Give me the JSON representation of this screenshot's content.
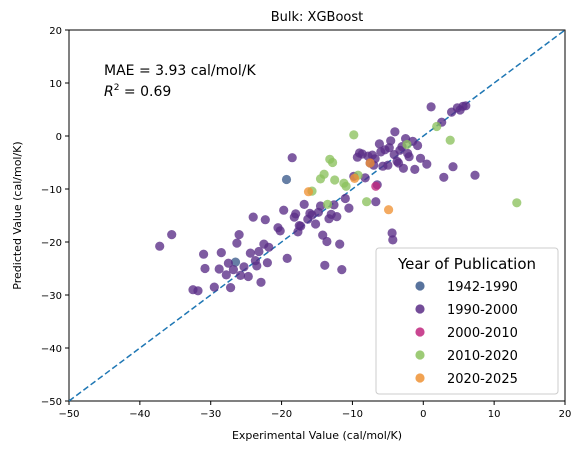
{
  "chart_data": {
    "type": "scatter",
    "title": "Bulk: XGBoost",
    "xlabel": "Experimental Value (cal/mol/K)",
    "ylabel": "Predicted Value (cal/mol/K)",
    "xlim": [
      -50,
      20
    ],
    "ylim": [
      -50,
      20
    ],
    "xticks": [
      -50,
      -40,
      -30,
      -20,
      -10,
      0,
      10,
      20
    ],
    "yticks": [
      -50,
      -40,
      -30,
      -20,
      -10,
      0,
      10,
      20
    ],
    "xtick_labels": [
      "−50",
      "−40",
      "−30",
      "−20",
      "−10",
      "0",
      "10",
      "20"
    ],
    "ytick_labels": [
      "−50",
      "−40",
      "−30",
      "−20",
      "−10",
      "0",
      "10",
      "20"
    ],
    "reference_line": "y = x",
    "annotations": {
      "mae": "MAE = 3.93 cal/mol/K",
      "r2_prefix": "R",
      "r2_sup": "2",
      "r2_value": " = 0.69"
    },
    "legend": {
      "title": "Year of Publication",
      "position": "lower-right"
    },
    "series": [
      {
        "name": "1942-1990",
        "color": "#3b5b8c",
        "points": [
          [
            -19.3,
            -8.2
          ],
          [
            -26.5,
            -23.8
          ]
        ]
      },
      {
        "name": "1990-2000",
        "color": "#5a2d86",
        "points": [
          [
            -37.2,
            -20.8
          ],
          [
            -35.5,
            -18.6
          ],
          [
            -32.5,
            -29.0
          ],
          [
            -31.8,
            -29.2
          ],
          [
            -30.8,
            -25.0
          ],
          [
            -31.0,
            -22.3
          ],
          [
            -29.5,
            -28.5
          ],
          [
            -28.8,
            -25.1
          ],
          [
            -28.5,
            -22.0
          ],
          [
            -27.8,
            -26.2
          ],
          [
            -27.5,
            -24.0
          ],
          [
            -27.2,
            -28.6
          ],
          [
            -26.8,
            -25.2
          ],
          [
            -26.3,
            -20.2
          ],
          [
            -26.0,
            -18.6
          ],
          [
            -25.8,
            -26.3
          ],
          [
            -25.3,
            -24.7
          ],
          [
            -24.7,
            -26.5
          ],
          [
            -24.4,
            -22.1
          ],
          [
            -24.0,
            -15.3
          ],
          [
            -23.7,
            -23.5
          ],
          [
            -23.5,
            -24.5
          ],
          [
            -23.2,
            -21.8
          ],
          [
            -22.9,
            -27.6
          ],
          [
            -22.5,
            -20.4
          ],
          [
            -22.0,
            -23.9
          ],
          [
            -22.3,
            -15.8
          ],
          [
            -21.8,
            -21.0
          ],
          [
            -20.5,
            -17.3
          ],
          [
            -20.2,
            -17.9
          ],
          [
            -19.7,
            -14.0
          ],
          [
            -19.2,
            -23.1
          ],
          [
            -18.5,
            -4.1
          ],
          [
            -18.2,
            -15.3
          ],
          [
            -18.0,
            -14.7
          ],
          [
            -17.7,
            -18.1
          ],
          [
            -17.5,
            -16.9
          ],
          [
            -16.8,
            -12.9
          ],
          [
            -16.3,
            -15.7
          ],
          [
            -16.0,
            -14.6
          ],
          [
            -15.7,
            -14.9
          ],
          [
            -15.2,
            -16.6
          ],
          [
            -14.8,
            -14.4
          ],
          [
            -14.5,
            -13.2
          ],
          [
            -14.2,
            -18.7
          ],
          [
            -13.9,
            -24.4
          ],
          [
            -13.6,
            -19.9
          ],
          [
            -13.3,
            -15.6
          ],
          [
            -13.0,
            -14.8
          ],
          [
            -12.6,
            -13.0
          ],
          [
            -12.2,
            -15.2
          ],
          [
            -11.8,
            -20.4
          ],
          [
            -11.5,
            -25.2
          ],
          [
            -11.0,
            -11.8
          ],
          [
            -10.5,
            -13.6
          ],
          [
            -9.8,
            -7.6
          ],
          [
            -9.3,
            -4.0
          ],
          [
            -8.6,
            -3.4
          ],
          [
            -8.2,
            -7.9
          ],
          [
            -7.8,
            -3.8
          ],
          [
            -7.5,
            -5.1
          ],
          [
            -7.2,
            -3.6
          ],
          [
            -7.0,
            -5.5
          ],
          [
            -6.8,
            -4.3
          ],
          [
            -6.5,
            -9.2
          ],
          [
            -6.2,
            -1.5
          ],
          [
            -6.0,
            -3.0
          ],
          [
            -5.7,
            -5.7
          ],
          [
            -5.4,
            -2.6
          ],
          [
            -5.0,
            -5.5
          ],
          [
            -4.8,
            -2.2
          ],
          [
            -4.6,
            -0.9
          ],
          [
            -4.4,
            -18.3
          ],
          [
            -4.3,
            -19.6
          ],
          [
            -4.1,
            -3.5
          ],
          [
            -4.0,
            0.8
          ],
          [
            -3.7,
            -4.8
          ],
          [
            -3.5,
            -5.1
          ],
          [
            -3.3,
            -2.7
          ],
          [
            -3.0,
            -2.0
          ],
          [
            -2.8,
            -6.1
          ],
          [
            -2.5,
            -0.5
          ],
          [
            -2.2,
            -3.3
          ],
          [
            -2.0,
            -3.9
          ],
          [
            -1.5,
            -1.0
          ],
          [
            -1.2,
            -6.3
          ],
          [
            -0.8,
            -1.8
          ],
          [
            -0.4,
            -4.2
          ],
          [
            0.5,
            -5.3
          ],
          [
            1.1,
            5.5
          ],
          [
            2.6,
            2.6
          ],
          [
            2.9,
            -7.8
          ],
          [
            4.0,
            4.5
          ],
          [
            4.2,
            -5.8
          ],
          [
            4.8,
            5.3
          ],
          [
            5.2,
            4.9
          ],
          [
            5.6,
            5.6
          ],
          [
            6.0,
            5.7
          ],
          [
            7.3,
            -7.4
          ],
          [
            -17.3,
            -17.0
          ],
          [
            -9.0,
            -3.2
          ],
          [
            -6.7,
            -12.4
          ]
        ]
      },
      {
        "name": "2000-2010",
        "color": "#c0267e",
        "points": [
          [
            -6.7,
            -9.5
          ]
        ]
      },
      {
        "name": "2010-2020",
        "color": "#8cc25e",
        "points": [
          [
            -15.7,
            -10.4
          ],
          [
            -14.5,
            -8.1
          ],
          [
            -14.0,
            -7.2
          ],
          [
            -13.5,
            -12.9
          ],
          [
            -13.2,
            -4.4
          ],
          [
            -12.8,
            -5.0
          ],
          [
            -12.5,
            -8.3
          ],
          [
            -11.2,
            -8.9
          ],
          [
            -10.9,
            -9.5
          ],
          [
            -9.8,
            0.2
          ],
          [
            -9.2,
            -7.4
          ],
          [
            -8.0,
            -12.4
          ],
          [
            -2.3,
            -1.6
          ],
          [
            1.9,
            1.8
          ],
          [
            3.8,
            -0.8
          ],
          [
            13.2,
            -12.6
          ]
        ]
      },
      {
        "name": "2020-2025",
        "color": "#ef9234",
        "points": [
          [
            -16.2,
            -10.5
          ],
          [
            -9.7,
            -8.0
          ],
          [
            -7.5,
            -5.1
          ],
          [
            -4.9,
            -13.9
          ]
        ]
      }
    ]
  }
}
